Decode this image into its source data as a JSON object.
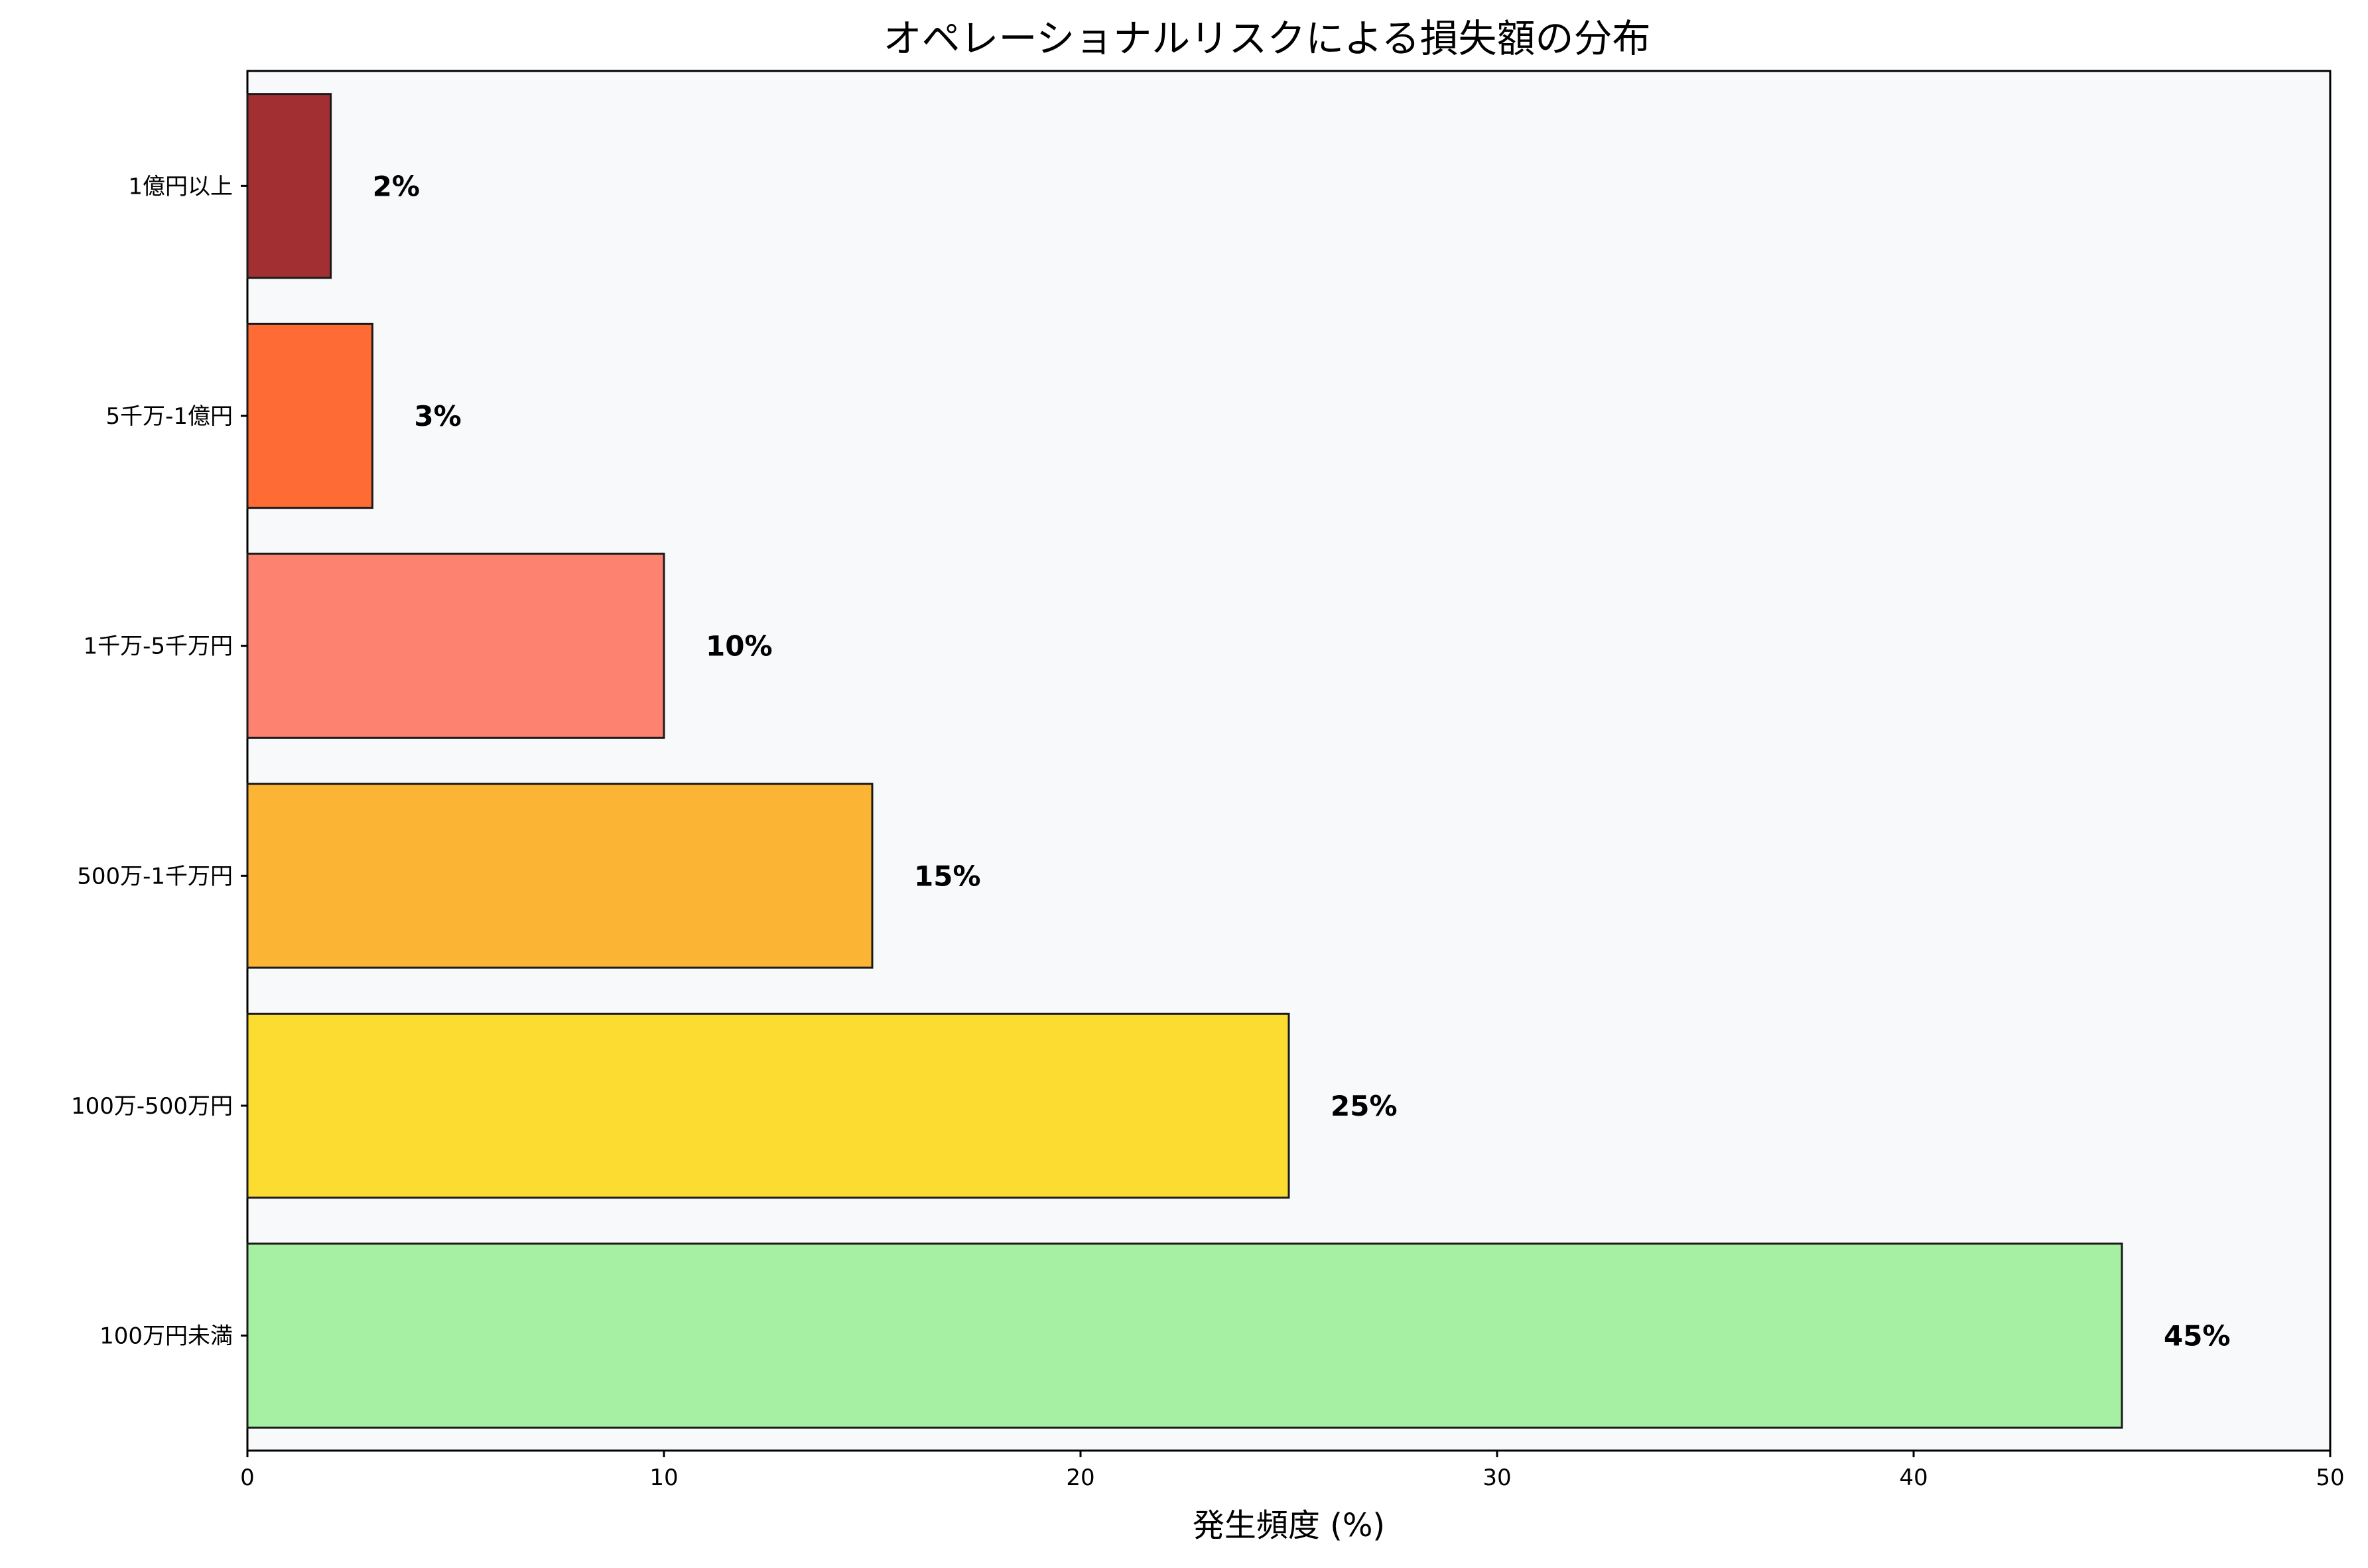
{
  "chart_data": {
    "type": "bar",
    "orientation": "horizontal",
    "title": "オペレーショナルリスクによる損失額の分布",
    "xlabel": "発生頻度 (%)",
    "ylabel": "",
    "xlim": [
      0,
      50
    ],
    "xticks": [
      "0",
      "10",
      "20",
      "30",
      "40",
      "50"
    ],
    "grid": false,
    "categories": [
      "100万円未満",
      "100万-500万円",
      "500万-1千万円",
      "1千万-5千万円",
      "5千万-1億円",
      "1億円以上"
    ],
    "values": [
      45,
      25,
      15,
      10,
      3,
      2
    ],
    "value_labels": [
      "45%",
      "25%",
      "15%",
      "10%",
      "3%",
      "2%"
    ],
    "colors": [
      "#a6f0a3",
      "#fddc32",
      "#fbb434",
      "#fd8270",
      "#fe6b35",
      "#a23033"
    ],
    "plot_background": "#f8f9fa"
  }
}
